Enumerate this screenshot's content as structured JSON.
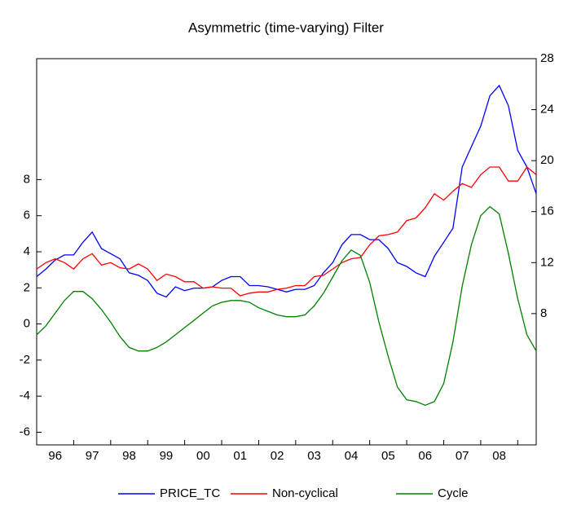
{
  "chart_data": {
    "type": "line",
    "title": "Asymmetric (time-varying) Filter",
    "x": [
      1996,
      1996.25,
      1996.5,
      1996.75,
      1997,
      1997.25,
      1997.5,
      1997.75,
      1998,
      1998.25,
      1998.5,
      1998.75,
      1999,
      1999.25,
      1999.5,
      1999.75,
      2000,
      2000.25,
      2000.5,
      2000.75,
      2001,
      2001.25,
      2001.5,
      2001.75,
      2002,
      2002.25,
      2002.5,
      2002.75,
      2003,
      2003.25,
      2003.5,
      2003.75,
      2004,
      2004.25,
      2004.5,
      2004.75,
      2005,
      2005.25,
      2005.5,
      2005.75,
      2006,
      2006.25,
      2006.5,
      2006.75,
      2007,
      2007.25,
      2007.5,
      2007.75,
      2008,
      2008.25,
      2008.5,
      2008.75,
      2009,
      2009.25,
      2009.5
    ],
    "xlim": [
      1996,
      2009.5
    ],
    "xticks": [
      {
        "value": 1996.5,
        "label": "96"
      },
      {
        "value": 1997.5,
        "label": "97"
      },
      {
        "value": 1998.5,
        "label": "98"
      },
      {
        "value": 1999.5,
        "label": "99"
      },
      {
        "value": 2000.5,
        "label": "00"
      },
      {
        "value": 2001.5,
        "label": "01"
      },
      {
        "value": 2002.5,
        "label": "02"
      },
      {
        "value": 2003.5,
        "label": "03"
      },
      {
        "value": 2004.5,
        "label": "04"
      },
      {
        "value": 2005.5,
        "label": "05"
      },
      {
        "value": 2006.5,
        "label": "06"
      },
      {
        "value": 2007.5,
        "label": "07"
      },
      {
        "value": 2008.5,
        "label": "08"
      }
    ],
    "ylim": [
      -6.7,
      14.7
    ],
    "yticks": [
      -6,
      -4,
      -2,
      0,
      2,
      4,
      6,
      8
    ],
    "y2lim": [
      -2.3,
      28
    ],
    "y2ticks": [
      8,
      12,
      16,
      20,
      24,
      28
    ],
    "series": [
      {
        "name": "PRICE_TC",
        "color": "#0000ff",
        "axis": "y2",
        "values": [
          10.9,
          11.5,
          12.2,
          12.6,
          12.6,
          13.6,
          14.4,
          13.1,
          12.7,
          12.3,
          11.2,
          11.0,
          10.6,
          9.6,
          9.3,
          10.1,
          9.8,
          10.0,
          10.0,
          10.1,
          10.6,
          10.9,
          10.9,
          10.2,
          10.2,
          10.1,
          9.9,
          9.7,
          9.9,
          9.9,
          10.2,
          11.2,
          12.0,
          13.4,
          14.2,
          14.2,
          13.8,
          13.8,
          13.1,
          12.0,
          11.7,
          11.2,
          10.9,
          12.5,
          13.6,
          14.7,
          19.5,
          21.1,
          22.7,
          25.1,
          25.9,
          24.3,
          20.8,
          19.5,
          17.4
        ]
      },
      {
        "name": "Non-cyclical",
        "color": "#ff0000",
        "axis": "y2",
        "values": [
          11.5,
          12.0,
          12.3,
          12.0,
          11.5,
          12.3,
          12.7,
          11.8,
          12.0,
          11.6,
          11.5,
          11.9,
          11.5,
          10.6,
          11.1,
          10.9,
          10.5,
          10.5,
          10.0,
          10.1,
          10.0,
          10.0,
          9.4,
          9.6,
          9.7,
          9.7,
          9.9,
          10.0,
          10.2,
          10.2,
          10.9,
          11.0,
          11.5,
          12.0,
          12.3,
          12.4,
          13.4,
          14.1,
          14.2,
          14.4,
          15.3,
          15.5,
          16.3,
          17.4,
          16.9,
          17.6,
          18.2,
          17.9,
          18.9,
          19.5,
          19.5,
          18.4,
          18.4,
          19.5,
          18.9
        ]
      },
      {
        "name": "Cycle",
        "color": "#008000",
        "axis": "y",
        "values": [
          -0.6,
          -0.1,
          0.6,
          1.3,
          1.8,
          1.8,
          1.4,
          0.8,
          0.1,
          -0.7,
          -1.3,
          -1.5,
          -1.5,
          -1.3,
          -1.0,
          -0.6,
          -0.2,
          0.2,
          0.6,
          1.0,
          1.2,
          1.3,
          1.3,
          1.2,
          0.9,
          0.7,
          0.5,
          0.4,
          0.4,
          0.5,
          1.0,
          1.7,
          2.6,
          3.5,
          4.1,
          3.8,
          2.3,
          0.1,
          -1.8,
          -3.5,
          -4.2,
          -4.3,
          -4.5,
          -4.3,
          -3.3,
          -1.0,
          2.1,
          4.4,
          6.0,
          6.5,
          6.1,
          3.9,
          1.4,
          -0.6,
          -1.5
        ]
      }
    ]
  }
}
